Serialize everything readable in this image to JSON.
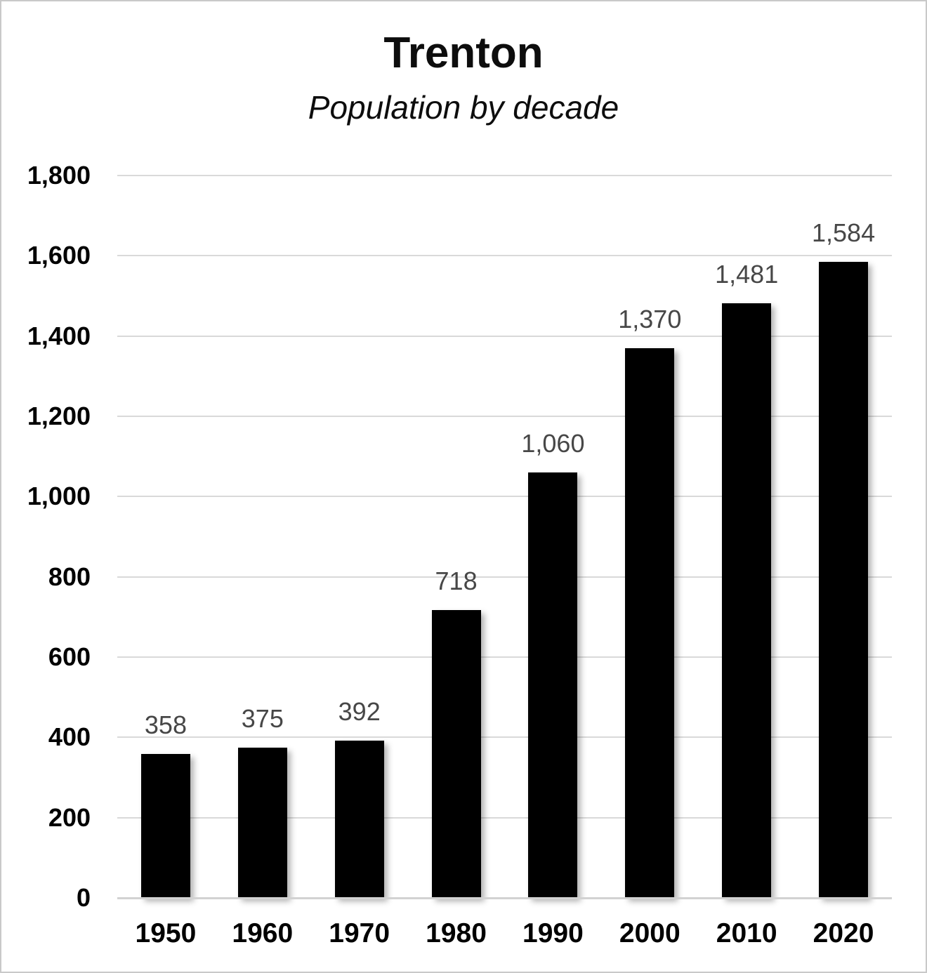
{
  "chart_data": {
    "type": "bar",
    "title": "Trenton",
    "subtitle": "Population by decade",
    "categories": [
      "1950",
      "1960",
      "1970",
      "1980",
      "1990",
      "2000",
      "2010",
      "2020"
    ],
    "values": [
      358,
      375,
      392,
      718,
      1060,
      1370,
      1481,
      1584
    ],
    "data_labels": [
      "358",
      "375",
      "392",
      "718",
      "1,060",
      "1,370",
      "1,481",
      "1,584"
    ],
    "xlabel": "",
    "ylabel": "",
    "ylim": [
      0,
      1800
    ],
    "ytick_step": 200,
    "yticks": [
      "0",
      "200",
      "400",
      "600",
      "800",
      "1,000",
      "1,200",
      "1,400",
      "1,600",
      "1,800"
    ],
    "grid": true,
    "legend": false,
    "colors": {
      "bar": "#000000",
      "value_label": "#474747",
      "gridline": "#d9d9d9",
      "axis_line": "#d2d2d2",
      "tick_label": "#000000",
      "title": "#0d0d0d"
    }
  }
}
